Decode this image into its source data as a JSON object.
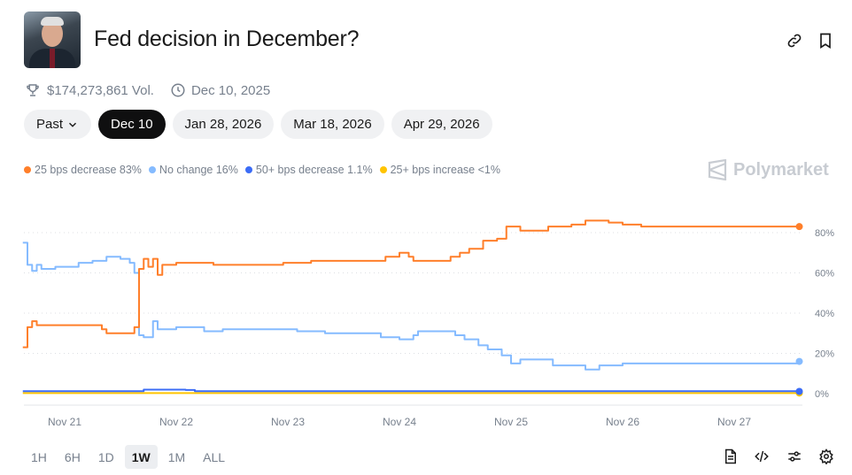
{
  "header": {
    "title": "Fed decision in December?",
    "volume": "$174,273,861 Vol.",
    "date": "Dec 10, 2025",
    "icons": [
      "link-icon",
      "bookmark-icon",
      "trophy-icon",
      "clock-icon"
    ]
  },
  "date_pills": [
    {
      "label": "Past",
      "active": false
    },
    {
      "label": "Dec 10",
      "active": true
    },
    {
      "label": "Jan 28, 2026",
      "active": false
    },
    {
      "label": "Mar 18, 2026",
      "active": false
    },
    {
      "label": "Apr 29, 2026",
      "active": false
    }
  ],
  "brand": "Polymarket",
  "ranges": [
    {
      "label": "1H"
    },
    {
      "label": "6H"
    },
    {
      "label": "1D"
    },
    {
      "label": "1W",
      "active": true
    },
    {
      "label": "1M"
    },
    {
      "label": "ALL"
    }
  ],
  "footer_icons": [
    "document-icon",
    "embed-code-icon",
    "sliders-icon",
    "settings-icon"
  ],
  "chart_data": {
    "type": "line",
    "title": "",
    "xlabel": "",
    "ylabel": "",
    "ylim": [
      0,
      80
    ],
    "yticks": [
      "0%",
      "20%",
      "40%",
      "60%",
      "80%"
    ],
    "xticks": [
      "Nov 21",
      "Nov 22",
      "Nov 23",
      "Nov 24",
      "Nov 25",
      "Nov 26",
      "Nov 27"
    ],
    "grid": "horizontal dotted",
    "legend": "top-left",
    "series": [
      {
        "name": "25 bps decrease",
        "legend_label": "25 bps decrease 83%",
        "color": "#ff7f2a",
        "points": [
          [
            "2025-11-20T15:00",
            23
          ],
          [
            "2025-11-20T16:00",
            33
          ],
          [
            "2025-11-20T17:00",
            36
          ],
          [
            "2025-11-20T18:00",
            34
          ],
          [
            "2025-11-21T04:00",
            34
          ],
          [
            "2025-11-21T08:00",
            32
          ],
          [
            "2025-11-21T09:00",
            30
          ],
          [
            "2025-11-21T14:00",
            30
          ],
          [
            "2025-11-21T15:00",
            33
          ],
          [
            "2025-11-21T16:00",
            62
          ],
          [
            "2025-11-21T17:00",
            67
          ],
          [
            "2025-11-21T18:00",
            63
          ],
          [
            "2025-11-21T19:00",
            67
          ],
          [
            "2025-11-21T20:00",
            59
          ],
          [
            "2025-11-21T21:00",
            64
          ],
          [
            "2025-11-22T00:00",
            65
          ],
          [
            "2025-11-22T08:00",
            64
          ],
          [
            "2025-11-22T23:00",
            65
          ],
          [
            "2025-11-23T05:00",
            66
          ],
          [
            "2025-11-23T20:00",
            66
          ],
          [
            "2025-11-23T21:00",
            68
          ],
          [
            "2025-11-24T00:00",
            70
          ],
          [
            "2025-11-24T02:00",
            68
          ],
          [
            "2025-11-24T03:00",
            66
          ],
          [
            "2025-11-24T10:00",
            66
          ],
          [
            "2025-11-24T11:00",
            68
          ],
          [
            "2025-11-24T13:00",
            70
          ],
          [
            "2025-11-24T15:00",
            72
          ],
          [
            "2025-11-24T18:00",
            76
          ],
          [
            "2025-11-24T21:00",
            77
          ],
          [
            "2025-11-24T23:00",
            83
          ],
          [
            "2025-11-25T02:00",
            81
          ],
          [
            "2025-11-25T06:00",
            81
          ],
          [
            "2025-11-25T08:00",
            83
          ],
          [
            "2025-11-25T13:00",
            84
          ],
          [
            "2025-11-25T16:00",
            86
          ],
          [
            "2025-11-25T21:00",
            85
          ],
          [
            "2025-11-26T00:00",
            84
          ],
          [
            "2025-11-26T04:00",
            83
          ],
          [
            "2025-11-27T14:00",
            83
          ]
        ]
      },
      {
        "name": "No change",
        "legend_label": "No change 16%",
        "color": "#85bbff",
        "points": [
          [
            "2025-11-20T15:00",
            75
          ],
          [
            "2025-11-20T16:00",
            64
          ],
          [
            "2025-11-20T17:00",
            61
          ],
          [
            "2025-11-20T18:00",
            64
          ],
          [
            "2025-11-20T19:00",
            62
          ],
          [
            "2025-11-20T22:00",
            63
          ],
          [
            "2025-11-21T03:00",
            65
          ],
          [
            "2025-11-21T06:00",
            66
          ],
          [
            "2025-11-21T09:00",
            68
          ],
          [
            "2025-11-21T12:00",
            67
          ],
          [
            "2025-11-21T14:00",
            65
          ],
          [
            "2025-11-21T15:00",
            60
          ],
          [
            "2025-11-21T16:00",
            29
          ],
          [
            "2025-11-21T17:00",
            28
          ],
          [
            "2025-11-21T19:00",
            36
          ],
          [
            "2025-11-21T20:00",
            32
          ],
          [
            "2025-11-22T00:00",
            33
          ],
          [
            "2025-11-22T06:00",
            31
          ],
          [
            "2025-11-22T10:00",
            32
          ],
          [
            "2025-11-23T00:00",
            32
          ],
          [
            "2025-11-23T02:00",
            31
          ],
          [
            "2025-11-23T08:00",
            30
          ],
          [
            "2025-11-23T18:00",
            30
          ],
          [
            "2025-11-23T20:00",
            28
          ],
          [
            "2025-11-24T00:00",
            27
          ],
          [
            "2025-11-24T03:00",
            29
          ],
          [
            "2025-11-24T04:00",
            31
          ],
          [
            "2025-11-24T10:00",
            31
          ],
          [
            "2025-11-24T12:00",
            29
          ],
          [
            "2025-11-24T14:00",
            27
          ],
          [
            "2025-11-24T17:00",
            24
          ],
          [
            "2025-11-24T19:00",
            22
          ],
          [
            "2025-11-24T22:00",
            19
          ],
          [
            "2025-11-25T00:00",
            15
          ],
          [
            "2025-11-25T02:00",
            17
          ],
          [
            "2025-11-25T07:00",
            17
          ],
          [
            "2025-11-25T09:00",
            14
          ],
          [
            "2025-11-25T14:00",
            14
          ],
          [
            "2025-11-25T16:00",
            12
          ],
          [
            "2025-11-25T19:00",
            14
          ],
          [
            "2025-11-26T00:00",
            15
          ],
          [
            "2025-11-27T14:00",
            16
          ]
        ]
      },
      {
        "name": "50+ bps decrease",
        "legend_label": "50+ bps decrease 1.1%",
        "color": "#3b6cf6",
        "points": [
          [
            "2025-11-20T15:00",
            1.2
          ],
          [
            "2025-11-21T15:00",
            1.2
          ],
          [
            "2025-11-21T17:00",
            2
          ],
          [
            "2025-11-22T02:00",
            1.8
          ],
          [
            "2025-11-22T04:00",
            1.2
          ],
          [
            "2025-11-27T14:00",
            1.1
          ]
        ]
      },
      {
        "name": "25+ bps increase",
        "legend_label": "25+ bps increase <1%",
        "color": "#ffc400",
        "points": [
          [
            "2025-11-20T15:00",
            0.3
          ],
          [
            "2025-11-27T14:00",
            0.3
          ]
        ]
      }
    ]
  }
}
